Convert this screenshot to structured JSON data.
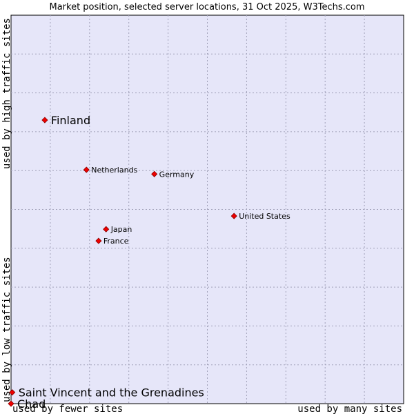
{
  "chart_data": {
    "type": "scatter",
    "title": "Market position, selected server locations, 31 Oct 2025, W3Techs.com",
    "xlabel_low": "used by fewer sites",
    "xlabel_high": "used by many sites",
    "ylabel_low": "used by low traffic sites",
    "ylabel_high": "used by high traffic sites",
    "xlim": [
      0,
      10
    ],
    "ylim": [
      0,
      10
    ],
    "grid": true,
    "points": [
      {
        "label": "Finland",
        "x": 0.86,
        "y": 7.3,
        "emphasis": true
      },
      {
        "label": "Netherlands",
        "x": 1.92,
        "y": 6.02,
        "emphasis": false
      },
      {
        "label": "Germany",
        "x": 3.65,
        "y": 5.91,
        "emphasis": false
      },
      {
        "label": "United States",
        "x": 5.68,
        "y": 4.83,
        "emphasis": false
      },
      {
        "label": "Japan",
        "x": 2.42,
        "y": 4.49,
        "emphasis": false
      },
      {
        "label": "France",
        "x": 2.23,
        "y": 4.19,
        "emphasis": false
      },
      {
        "label": "Saint Vincent and the Grenadines",
        "x": 0.03,
        "y": 0.29,
        "emphasis": true
      },
      {
        "label": "Chad",
        "x": 0.0,
        "y": 0.0,
        "emphasis": true
      }
    ]
  },
  "colors": {
    "plot_background": "#e6e6f9",
    "grid": "#a0a0b8",
    "point": "#ee0000",
    "point_stroke": "#880000"
  }
}
